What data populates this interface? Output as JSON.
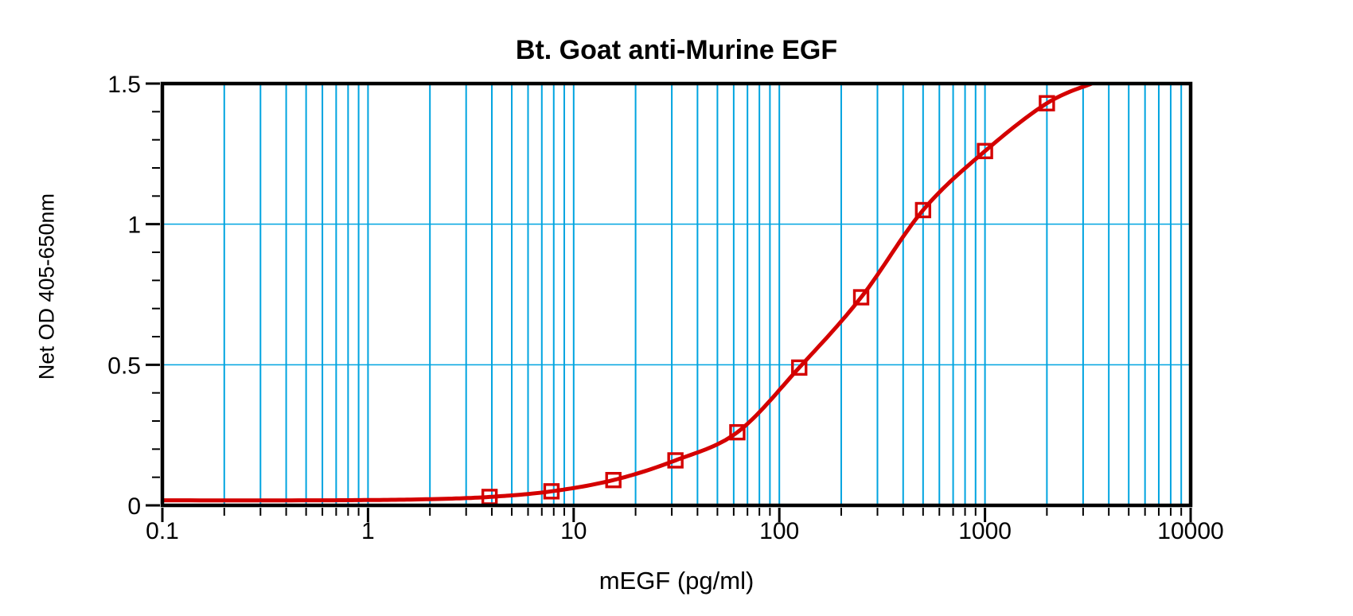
{
  "chart_data": {
    "type": "line",
    "title": "Bt. Goat anti-Murine EGF",
    "xlabel": "mEGF (pg/ml)",
    "ylabel": "Net OD 405-650nm",
    "x_scale": "log",
    "y_scale": "linear",
    "xlim": [
      0.1,
      10000
    ],
    "ylim": [
      0,
      1.5
    ],
    "x_tick_values": [
      0.1,
      1,
      10,
      100,
      1000,
      10000
    ],
    "x_tick_labels": [
      "0.1",
      "1",
      "10",
      "100",
      "1000",
      "10000"
    ],
    "y_tick_values": [
      0,
      0.5,
      1,
      1.5
    ],
    "y_tick_labels": [
      "0",
      "0.5",
      "1",
      "1.5"
    ],
    "y_minor_tick_step": 0.1,
    "grid": {
      "vertical_minor": "cyan lines at 2-9 multiples of each decade plus decade lines 1, 10, 100, 1000",
      "vertical_decade_lines": [
        1,
        10,
        100,
        1000
      ],
      "horizontal_values": [
        0.5,
        1.0
      ],
      "color": "#00A4E0"
    },
    "legend": "none",
    "series": [
      {
        "name": "standard curve",
        "color": "#D40000",
        "marker": "open-square",
        "points": [
          [
            3.9,
            0.03
          ],
          [
            7.8,
            0.05
          ],
          [
            15.6,
            0.09
          ],
          [
            31.25,
            0.16
          ],
          [
            62.5,
            0.26
          ],
          [
            125,
            0.49
          ],
          [
            250,
            0.74
          ],
          [
            500,
            1.05
          ],
          [
            1000,
            1.26
          ],
          [
            2000,
            1.43
          ]
        ]
      }
    ],
    "fit_curve": {
      "baseline": 0.018,
      "anchors": [
        [
          0.1,
          0.018
        ],
        [
          0.5,
          0.018
        ],
        [
          1,
          0.019
        ],
        [
          2,
          0.022
        ],
        [
          3.9,
          0.03
        ],
        [
          7.8,
          0.05
        ],
        [
          15.6,
          0.09
        ],
        [
          31.25,
          0.16
        ],
        [
          62.5,
          0.26
        ],
        [
          125,
          0.49
        ],
        [
          250,
          0.74
        ],
        [
          500,
          1.05
        ],
        [
          1000,
          1.26
        ],
        [
          2000,
          1.43
        ],
        [
          3300,
          1.5
        ]
      ]
    },
    "colors": {
      "curve": "#D40000",
      "grid": "#00A4E0",
      "axis": "#000000",
      "background": "#FFFFFF"
    }
  }
}
